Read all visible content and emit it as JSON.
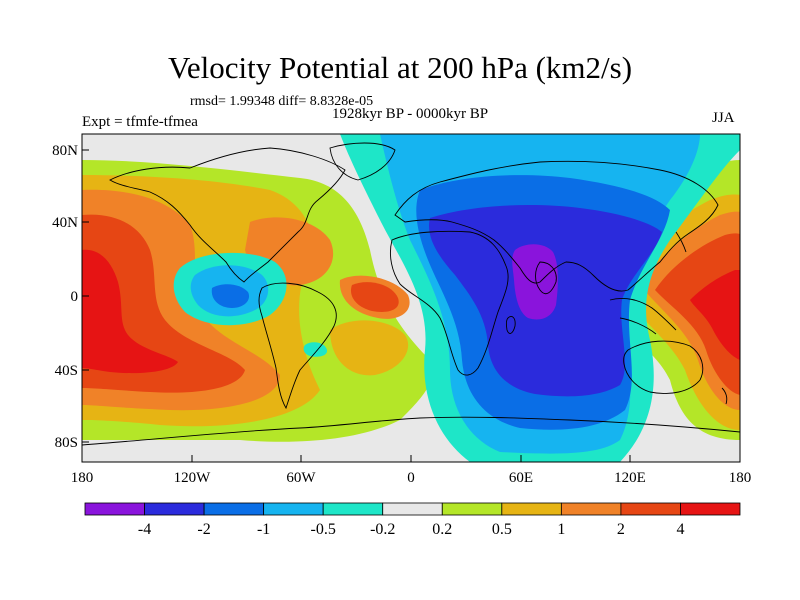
{
  "title": "Velocity Potential at 200 hPa (km2/s)",
  "stats_line": "rmsd= 1.99348 diff= 8.8328e-05",
  "experiment": "Expt = tfmfe-tfmea",
  "period": "1928kyr BP - 0000kyr BP",
  "season": "JJA",
  "lat_ticks": [
    "80N",
    "40N",
    "0",
    "40S",
    "80S"
  ],
  "lon_ticks": [
    "180",
    "120W",
    "60W",
    "0",
    "60E",
    "120E",
    "180"
  ],
  "colorbar": {
    "labels": [
      "-4",
      "-2",
      "-1",
      "-0.5",
      "-0.2",
      "0.2",
      "0.5",
      "1",
      "2",
      "4"
    ],
    "colors": [
      "#8a14dc",
      "#2b2bdc",
      "#0a6ee6",
      "#16b4f0",
      "#1ee6c8",
      "#e8e8e8",
      "#b4e628",
      "#e6b414",
      "#f08228",
      "#e64614",
      "#e61414"
    ]
  }
}
